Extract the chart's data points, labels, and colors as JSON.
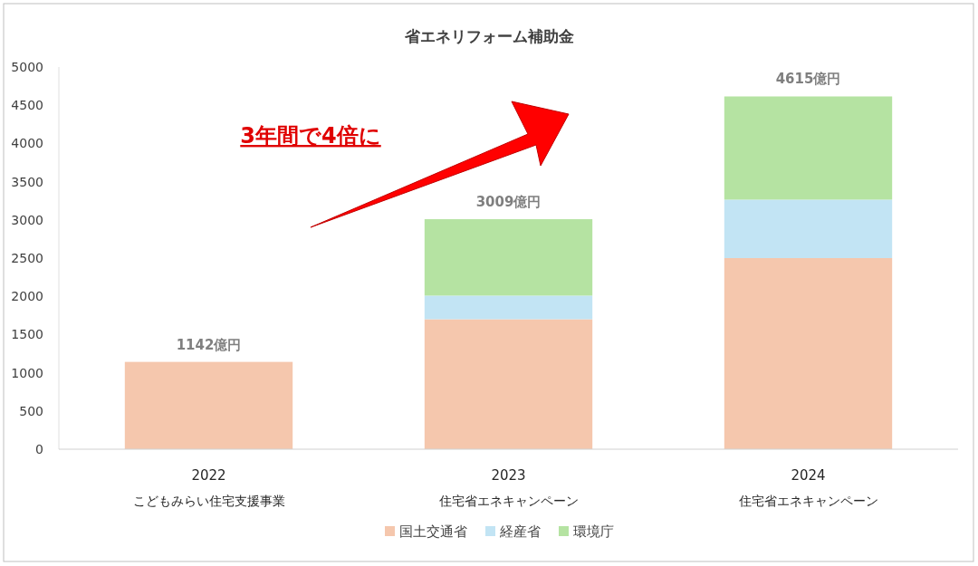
{
  "chart_data": {
    "type": "bar",
    "title": "省エネリフォーム補助金",
    "categories": [
      "2022\nこどもみらい住宅支援事業",
      "2023\n住宅省エネキャンペーン",
      "2024\n住宅省エネキャンペーン"
    ],
    "series": [
      {
        "name": "国土交通省",
        "color": "#f5c7ad",
        "values": [
          1142,
          1700,
          2500
        ]
      },
      {
        "name": "経産省",
        "color": "#c2e4f4",
        "values": [
          null,
          309,
          765
        ]
      },
      {
        "name": "環境庁",
        "color": "#b5e3a2",
        "values": [
          null,
          1000,
          1350
        ]
      }
    ],
    "stacked": true,
    "totals": [
      "1142億円",
      "3009億円",
      "4615億円"
    ],
    "ylim": [
      0,
      5000
    ],
    "yticks": [
      0,
      500,
      1000,
      1500,
      2000,
      2500,
      3000,
      3500,
      4000,
      4500,
      5000
    ],
    "grid": false,
    "legend": "bottom",
    "annotations": [
      "3年間で4倍に"
    ]
  }
}
